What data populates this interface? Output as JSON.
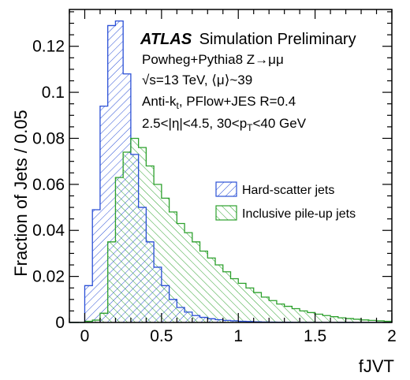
{
  "chart_data": {
    "type": "bar",
    "xlabel": "fJVT",
    "ylabel": "Fraction of Jets / 0.05",
    "xlim": [
      -0.1,
      2.0
    ],
    "ylim": [
      0,
      0.136
    ],
    "x_ticks": [
      {
        "value": 0,
        "label": "0"
      },
      {
        "value": 0.5,
        "label": "0.5"
      },
      {
        "value": 1,
        "label": "1"
      },
      {
        "value": 1.5,
        "label": "1.5"
      },
      {
        "value": 2,
        "label": "2"
      }
    ],
    "y_ticks": [
      {
        "value": 0,
        "label": "0"
      },
      {
        "value": 0.02,
        "label": "0.02"
      },
      {
        "value": 0.04,
        "label": "0.04"
      },
      {
        "value": 0.06,
        "label": "0.06"
      },
      {
        "value": 0.08,
        "label": "0.08"
      },
      {
        "value": 0.1,
        "label": "0.1"
      },
      {
        "value": 0.12,
        "label": "0.12"
      }
    ],
    "bin_width": 0.05,
    "bin_edges_start": -0.1,
    "series": [
      {
        "name": "Hard-scatter jets",
        "color": "#2a4fd6",
        "hatch": "diagonal-right",
        "values": [
          0.0,
          0.0,
          0.016,
          0.049,
          0.094,
          0.129,
          0.131,
          0.108,
          0.073,
          0.05,
          0.035,
          0.024,
          0.016,
          0.01,
          0.0065,
          0.0045,
          0.003,
          0.0022,
          0.0016,
          0.0012,
          0.0009,
          0.0007,
          0.0005,
          0.0004,
          0.0003,
          0.0002,
          0.00015,
          0.0001,
          0.0001,
          8e-05,
          6e-05,
          5e-05,
          4e-05,
          3e-05,
          3e-05,
          2e-05,
          2e-05,
          1e-05,
          1e-05,
          0.0,
          0.0,
          0.0
        ]
      },
      {
        "name": "Inclusive pile-up jets",
        "color": "#2ca02c",
        "hatch": "diagonal-left",
        "values": [
          0.0,
          0.0,
          0.0005,
          0.001,
          0.004,
          0.035,
          0.063,
          0.074,
          0.08,
          0.076,
          0.068,
          0.06,
          0.054,
          0.048,
          0.043,
          0.039,
          0.035,
          0.031,
          0.028,
          0.025,
          0.022,
          0.019,
          0.017,
          0.015,
          0.013,
          0.011,
          0.0095,
          0.008,
          0.007,
          0.006,
          0.005,
          0.0043,
          0.0036,
          0.003,
          0.0025,
          0.002,
          0.0017,
          0.0014,
          0.0011,
          0.0009,
          0.0007,
          0.0005
        ]
      }
    ],
    "legend": {
      "placement": "center-right"
    },
    "annotations": {
      "atlas": "ATLAS",
      "atlas_rest": "Simulation Preliminary",
      "line1": "Powheg+Pythia8 Z→μμ",
      "line2": "√s=13 TeV, ⟨μ⟩~39",
      "line3_main": "Anti-k",
      "line3_sub": "t",
      "line3_rest": ", PFlow+JES R=0.4",
      "line4_main": "2.5<|η|<4.5, 30<p",
      "line4_sub": "T",
      "line4_rest": "<40 GeV"
    }
  }
}
